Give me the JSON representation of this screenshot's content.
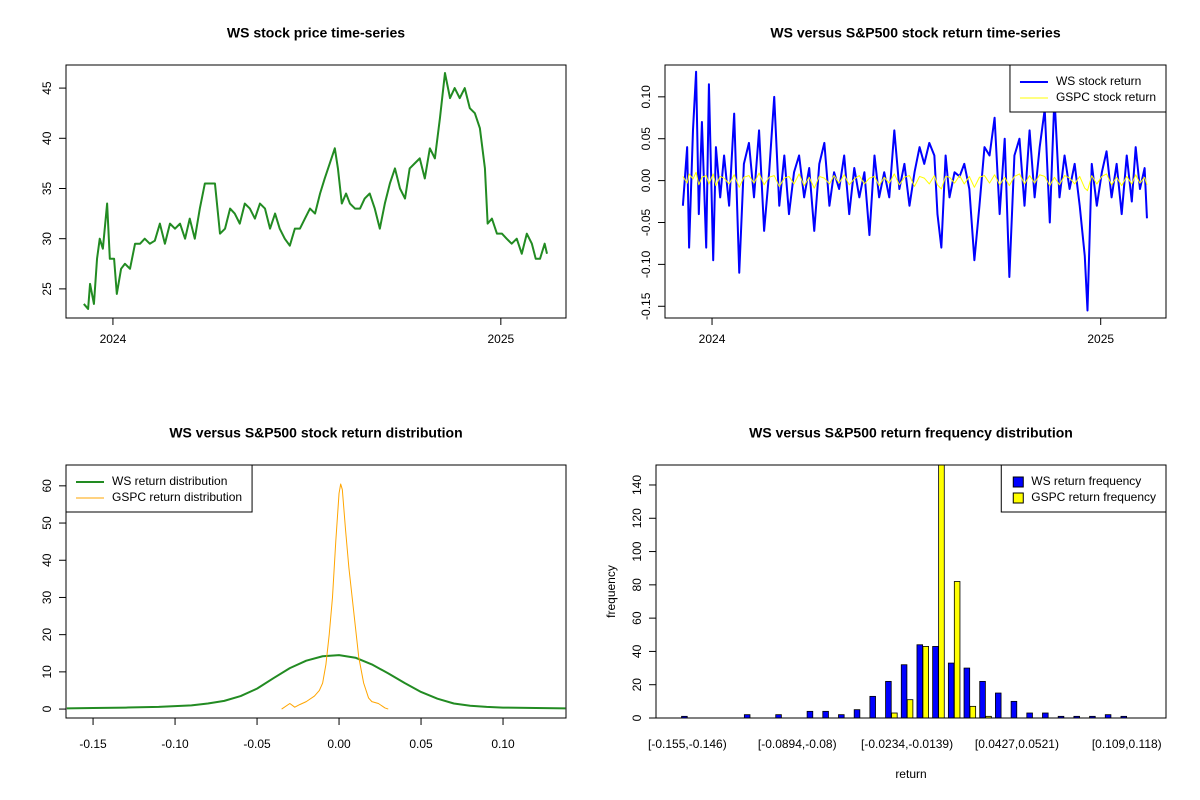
{
  "chart_data": [
    {
      "type": "line",
      "title": "WS stock price time-series",
      "color": "#228B22",
      "linewidth": 2,
      "xlim": [
        2023.879,
        2025.168
      ],
      "xticks": [
        2024,
        2025
      ],
      "ylim": [
        22.1,
        47.3
      ],
      "yticks": [
        25,
        30,
        35,
        40,
        45
      ],
      "x": [
        2023.925,
        2023.936,
        2023.941,
        2023.951,
        2023.959,
        2023.966,
        2023.974,
        2023.985,
        2023.992,
        2024.003,
        2024.01,
        2024.021,
        2024.031,
        2024.044,
        2024.057,
        2024.07,
        2024.082,
        2024.095,
        2024.108,
        2024.121,
        2024.134,
        2024.147,
        2024.16,
        2024.173,
        2024.186,
        2024.198,
        2024.211,
        2024.224,
        2024.237,
        2024.25,
        2024.263,
        2024.276,
        2024.289,
        2024.302,
        2024.314,
        2024.327,
        2024.34,
        2024.353,
        2024.366,
        2024.379,
        2024.392,
        2024.405,
        2024.418,
        2024.43,
        2024.443,
        2024.456,
        2024.469,
        2024.482,
        2024.495,
        2024.508,
        2024.521,
        2024.534,
        2024.546,
        2024.559,
        2024.572,
        2024.58,
        2024.59,
        2024.601,
        2024.611,
        2024.624,
        2024.637,
        2024.649,
        2024.662,
        2024.675,
        2024.688,
        2024.701,
        2024.714,
        2024.727,
        2024.74,
        2024.753,
        2024.765,
        2024.778,
        2024.791,
        2024.804,
        2024.817,
        2024.83,
        2024.843,
        2024.856,
        2024.869,
        2024.881,
        2024.894,
        2024.907,
        2024.92,
        2024.933,
        2024.946,
        2024.959,
        2024.966,
        2024.977,
        2024.99,
        2025.003,
        2025.015,
        2025.028,
        2025.041,
        2025.054,
        2025.067,
        2025.08,
        2025.09,
        2025.101,
        2025.113,
        2025.119
      ],
      "values": [
        23.5,
        23,
        25.5,
        23.5,
        28,
        30,
        29,
        33.5,
        28,
        28,
        24.5,
        27,
        27.5,
        27,
        29.5,
        29.5,
        30,
        29.5,
        29.8,
        31.5,
        29.5,
        31.5,
        31,
        31.5,
        30,
        32,
        30,
        33,
        35.5,
        35.5,
        35.5,
        30.5,
        31,
        33,
        32.5,
        31.5,
        33.5,
        33,
        32,
        33.5,
        33,
        31,
        32.5,
        31,
        30,
        29.3,
        31,
        31,
        32,
        33,
        32.5,
        34.5,
        36,
        37.5,
        39,
        37,
        33.5,
        34.5,
        33.5,
        33,
        33,
        34,
        34.5,
        33,
        31,
        33.5,
        35.5,
        37,
        35,
        34,
        37,
        37.5,
        38,
        36,
        39,
        38,
        42,
        46.5,
        44,
        45,
        44,
        45,
        43,
        42.5,
        41,
        37,
        31.5,
        32,
        30.5,
        30.5,
        30,
        29.5,
        30,
        28.5,
        30.5,
        29.5,
        28,
        28,
        29.5,
        28.5
      ]
    },
    {
      "type": "line",
      "title": "WS versus S&P500 stock return time-series",
      "legend": "top-right",
      "xlim": [
        2023.879,
        2025.168
      ],
      "xticks": [
        2024,
        2025
      ],
      "ylim": [
        -0.164,
        0.138
      ],
      "yticks": [
        {
          "value": -0.15,
          "label": "-0.15"
        },
        {
          "value": -0.1,
          "label": "-0.10"
        },
        -0.05,
        {
          "value": 0,
          "label": "0.00"
        },
        0.05,
        {
          "value": 0.1,
          "label": "0.10"
        }
      ],
      "x": [
        2023.925,
        2023.936,
        2023.941,
        2023.951,
        2023.959,
        2023.966,
        2023.974,
        2023.985,
        2023.992,
        2024.003,
        2024.01,
        2024.021,
        2024.031,
        2024.044,
        2024.057,
        2024.07,
        2024.082,
        2024.095,
        2024.108,
        2024.121,
        2024.134,
        2024.147,
        2024.16,
        2024.173,
        2024.186,
        2024.198,
        2024.211,
        2024.224,
        2024.237,
        2024.25,
        2024.263,
        2024.276,
        2024.289,
        2024.302,
        2024.314,
        2024.327,
        2024.34,
        2024.353,
        2024.366,
        2024.379,
        2024.392,
        2024.405,
        2024.418,
        2024.43,
        2024.443,
        2024.456,
        2024.469,
        2024.482,
        2024.495,
        2024.508,
        2024.521,
        2024.534,
        2024.546,
        2024.559,
        2024.572,
        2024.58,
        2024.59,
        2024.601,
        2024.611,
        2024.624,
        2024.637,
        2024.649,
        2024.662,
        2024.675,
        2024.688,
        2024.701,
        2024.714,
        2024.727,
        2024.74,
        2024.753,
        2024.765,
        2024.778,
        2024.791,
        2024.804,
        2024.817,
        2024.83,
        2024.843,
        2024.856,
        2024.869,
        2024.881,
        2024.894,
        2024.907,
        2024.92,
        2024.933,
        2024.946,
        2024.959,
        2024.966,
        2024.977,
        2024.99,
        2025.003,
        2025.015,
        2025.028,
        2025.041,
        2025.054,
        2025.067,
        2025.08,
        2025.09,
        2025.101,
        2025.113,
        2025.119
      ],
      "series": [
        {
          "name": "WS stock return",
          "color": "#0000FF",
          "linewidth": 2,
          "values": [
            -0.03,
            0.04,
            -0.08,
            0.06,
            0.13,
            -0.04,
            0.07,
            -0.08,
            0.115,
            -0.095,
            0.04,
            -0.02,
            0.03,
            -0.03,
            0.08,
            -0.11,
            0.02,
            0.045,
            -0.02,
            0.06,
            -0.06,
            0.01,
            0.1,
            -0.03,
            0.03,
            -0.04,
            0.01,
            0.03,
            -0.02,
            0.015,
            -0.06,
            0.02,
            0.045,
            -0.03,
            0.01,
            -0.01,
            0.03,
            -0.04,
            0.015,
            -0.02,
            0.01,
            -0.065,
            0.03,
            -0.02,
            0.01,
            -0.02,
            0.06,
            -0.01,
            0.02,
            -0.03,
            0.01,
            0.04,
            0.02,
            0.045,
            0.03,
            -0.04,
            -0.08,
            0.03,
            -0.02,
            0.01,
            0.005,
            0.02,
            -0.01,
            -0.095,
            -0.03,
            0.04,
            0.03,
            0.075,
            -0.04,
            0.05,
            -0.115,
            0.03,
            0.05,
            -0.03,
            0.06,
            -0.02,
            0.04,
            0.085,
            -0.05,
            0.1,
            -0.02,
            0.03,
            -0.01,
            0.02,
            -0.03,
            -0.09,
            -0.155,
            0.02,
            -0.03,
            0.01,
            0.035,
            -0.02,
            0.02,
            -0.04,
            0.03,
            -0.025,
            0.04,
            -0.01,
            0.015,
            -0.045
          ]
        },
        {
          "name": "GSPC stock return",
          "color": "#FFFF00",
          "linewidth": 1,
          "values": [
            0.005,
            -0.003,
            0.008,
            0.002,
            0.01,
            -0.005,
            0.004,
            0.006,
            -0.004,
            0.008,
            -0.006,
            0.005,
            0.003,
            -0.004,
            0.007,
            -0.008,
            0.004,
            0.006,
            -0.003,
            0.009,
            -0.005,
            0.004,
            0.006,
            -0.007,
            0.003,
            0.005,
            -0.004,
            0.008,
            -0.006,
            0.004,
            -0.009,
            0.005,
            0.003,
            -0.004,
            0.006,
            -0.003,
            0.007,
            -0.005,
            0.002,
            0.006,
            -0.004,
            0.003,
            0.005,
            -0.006,
            0.004,
            -0.003,
            0.008,
            -0.005,
            0.004,
            0.006,
            -0.007,
            0.005,
            0.003,
            -0.004,
            0.006,
            -0.005,
            -0.01,
            0.005,
            0.004,
            -0.003,
            0.006,
            -0.004,
            0.005,
            -0.008,
            0.004,
            0.006,
            -0.003,
            0.007,
            -0.005,
            0.004,
            -0.006,
            0.005,
            0.008,
            -0.004,
            0.006,
            -0.003,
            0.007,
            0.005,
            -0.006,
            0.004,
            -0.005,
            0.006,
            0.003,
            -0.004,
            0.005,
            -0.009,
            -0.012,
            0.006,
            -0.004,
            0.005,
            0.008,
            -0.005,
            0.004,
            -0.006,
            0.005,
            -0.004,
            0.007,
            -0.003,
            0.004,
            -0.005
          ]
        }
      ]
    },
    {
      "type": "line",
      "title": "WS versus S&P500 stock return distribution",
      "legend": "top-left",
      "xlim": [
        -0.1665,
        0.1384
      ],
      "xticks": [
        -0.15,
        {
          "value": -0.1,
          "label": "-0.10"
        },
        -0.05,
        {
          "value": 0,
          "label": "0.00"
        },
        0.05,
        {
          "value": 0.1,
          "label": "0.10"
        }
      ],
      "ylim": [
        -2.4,
        65.6
      ],
      "yticks": [
        0,
        10,
        20,
        30,
        40,
        50,
        60
      ],
      "series": [
        {
          "name": "WS return distribution",
          "color": "#228B22",
          "linewidth": 2,
          "x": [
            -0.166,
            -0.15,
            -0.13,
            -0.11,
            -0.09,
            -0.08,
            -0.07,
            -0.06,
            -0.05,
            -0.04,
            -0.03,
            -0.02,
            -0.01,
            0,
            0.01,
            0.02,
            0.03,
            0.04,
            0.05,
            0.06,
            0.07,
            0.08,
            0.09,
            0.1,
            0.12,
            0.138
          ],
          "values": [
            0.2,
            0.3,
            0.4,
            0.6,
            1.0,
            1.5,
            2.2,
            3.5,
            5.5,
            8.3,
            11.0,
            13.0,
            14.2,
            14.5,
            13.8,
            12.0,
            9.6,
            7.0,
            4.6,
            2.8,
            1.5,
            0.9,
            0.6,
            0.4,
            0.3,
            0.2
          ]
        },
        {
          "name": "GSPC return distribution",
          "color": "#FFA500",
          "linewidth": 1,
          "x": [
            -0.035,
            -0.03,
            -0.027,
            -0.024,
            -0.02,
            -0.015,
            -0.012,
            -0.01,
            -0.008,
            -0.006,
            -0.004,
            -0.002,
            0,
            0.001,
            0.002,
            0.004,
            0.006,
            0.008,
            0.01,
            0.012,
            0.015,
            0.018,
            0.02,
            0.024,
            0.028,
            0.03
          ],
          "values": [
            0,
            1.5,
            0.5,
            1.2,
            2,
            3.5,
            5,
            7,
            12,
            20,
            30,
            45,
            58,
            60.5,
            59,
            48,
            38,
            30,
            22,
            14,
            7,
            3,
            2,
            1.5,
            0.3,
            0
          ]
        }
      ]
    },
    {
      "type": "bar",
      "title": "WS versus S&P500 return frequency distribution",
      "legend": "top-right",
      "xlabel": "return",
      "ylabel": "frequency",
      "ylim": [
        0,
        152
      ],
      "yticks": [
        0,
        20,
        40,
        60,
        80,
        100,
        120,
        140
      ],
      "categories": [
        "[-0.155,-0.146)",
        null,
        null,
        null,
        null,
        null,
        null,
        "[-0.0894,-0.08)",
        null,
        null,
        null,
        null,
        null,
        null,
        "[-0.0234,-0.0139)",
        null,
        null,
        null,
        null,
        null,
        null,
        "[0.0427,0.0521)",
        null,
        null,
        null,
        null,
        null,
        null,
        "[0.109,0.118)"
      ],
      "series": [
        {
          "name": "WS return frequency",
          "color": "#0000FF",
          "values": [
            1,
            0,
            0,
            0,
            2,
            0,
            2,
            0,
            4,
            4,
            2,
            5,
            13,
            22,
            32,
            44,
            43,
            33,
            30,
            22,
            15,
            10,
            3,
            3,
            1,
            1,
            1,
            2,
            1
          ]
        },
        {
          "name": "GSPC return frequency",
          "color": "#FFFF00",
          "values": [
            0,
            0,
            0,
            0,
            0,
            0,
            0,
            0,
            0,
            0,
            0,
            0,
            0,
            3,
            11,
            43,
            152,
            82,
            7,
            1,
            0,
            0,
            0,
            0,
            0,
            0,
            0,
            0,
            0
          ]
        }
      ]
    }
  ]
}
